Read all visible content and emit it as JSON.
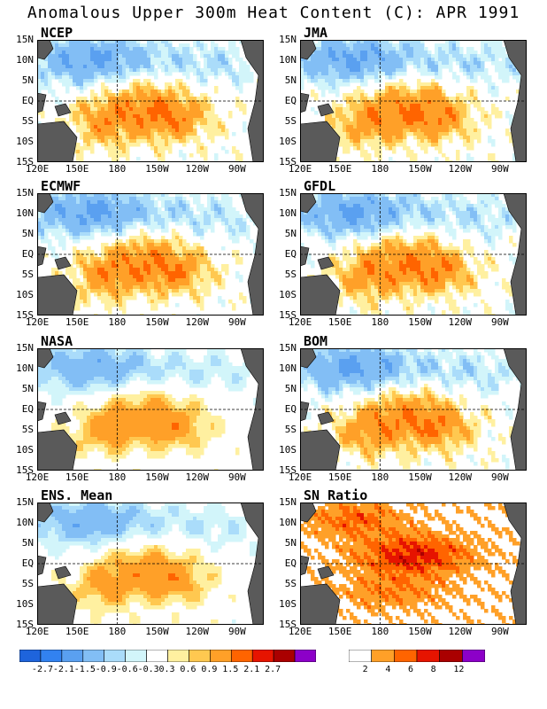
{
  "title": "Anomalous Upper 300m Heat Content (C): APR 1991",
  "y_ticks": [
    "15N",
    "10N",
    "5N",
    "EQ",
    "5S",
    "10S",
    "15S"
  ],
  "x_ticks": [
    "120E",
    "150E",
    "180",
    "150W",
    "120W",
    "90W"
  ],
  "colors": {
    "land": "#5a5a5a",
    "scale1": [
      "#1e64dc",
      "#3282f0",
      "#5aa0f0",
      "#82bef5",
      "#aadcfa",
      "#d2f5fa",
      "#ffffff",
      "#fff0a0",
      "#ffc850",
      "#ffa028",
      "#ff6400",
      "#e61400",
      "#aa0000",
      "#8c00c8"
    ],
    "scale2": [
      "#ffffff",
      "#ffa028",
      "#ff6400",
      "#e61400",
      "#aa0000",
      "#8c00c8"
    ]
  },
  "chart_data": [
    {
      "type": "heatmap",
      "panel": "NCEP",
      "xlim": [
        "120E",
        "70W"
      ],
      "ylim": [
        "15S",
        "15N"
      ],
      "variable": "heat content anomaly (C)"
    },
    {
      "type": "heatmap",
      "panel": "JMA",
      "xlim": [
        "120E",
        "70W"
      ],
      "ylim": [
        "15S",
        "15N"
      ],
      "variable": "heat content anomaly (C)"
    },
    {
      "type": "heatmap",
      "panel": "ECMWF",
      "xlim": [
        "120E",
        "70W"
      ],
      "ylim": [
        "15S",
        "15N"
      ],
      "variable": "heat content anomaly (C)"
    },
    {
      "type": "heatmap",
      "panel": "GFDL",
      "xlim": [
        "120E",
        "70W"
      ],
      "ylim": [
        "15S",
        "15N"
      ],
      "variable": "heat content anomaly (C)"
    },
    {
      "type": "heatmap",
      "panel": "NASA",
      "xlim": [
        "120E",
        "70W"
      ],
      "ylim": [
        "15S",
        "15N"
      ],
      "variable": "heat content anomaly (C)"
    },
    {
      "type": "heatmap",
      "panel": "BOM",
      "xlim": [
        "120E",
        "70W"
      ],
      "ylim": [
        "15S",
        "15N"
      ],
      "variable": "heat content anomaly (C)"
    },
    {
      "type": "heatmap",
      "panel": "ENS. Mean",
      "xlim": [
        "120E",
        "70W"
      ],
      "ylim": [
        "15S",
        "15N"
      ],
      "variable": "heat content anomaly (C)"
    },
    {
      "type": "heatmap",
      "panel": "SN Ratio",
      "xlim": [
        "120E",
        "70W"
      ],
      "ylim": [
        "15S",
        "15N"
      ],
      "variable": "signal-to-noise ratio"
    }
  ],
  "colorbar1": {
    "ticks": [
      "-2.7",
      "-2.1",
      "-1.5",
      "-0.9",
      "-0.6",
      "-0.3",
      "0.3",
      "0.6",
      "0.9",
      "1.5",
      "2.1",
      "2.7"
    ]
  },
  "colorbar2": {
    "ticks": [
      "2",
      "4",
      "6",
      "8",
      "12"
    ]
  }
}
